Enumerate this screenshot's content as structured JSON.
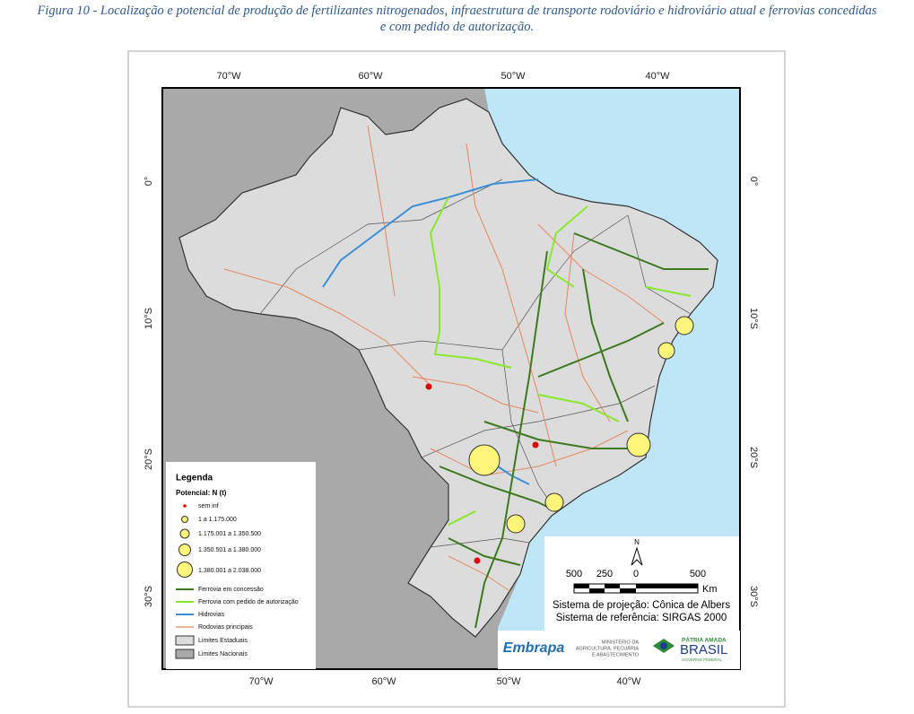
{
  "caption": [
    "Figura 10 - Localização e potencial de produção de fertilizantes nitrogenados, infraestrutura de transporte rodoviário e hidroviário atual e ferrovias concedidas",
    "e com pedido de autorização."
  ],
  "map": {
    "graticule": {
      "top": [
        "70°W",
        "60°W",
        "50°W",
        "40°W"
      ],
      "bottom": [
        "70°W",
        "60°W",
        "50°W",
        "40°W"
      ],
      "left": [
        "0°",
        "10°S",
        "20°S",
        "30°S"
      ],
      "right": [
        "0°",
        "10°S",
        "20°S",
        "30°S"
      ]
    },
    "legend": {
      "title": "Legenda",
      "subtitle": "Potencial: N (t)",
      "classes": [
        "sem inf",
        "1 a 1.175.000",
        "1.175.001 a 1.350.500",
        "1.350.501 a 1.380.000",
        "1.380.001 a 2.038.000"
      ],
      "lines": [
        "Ferrovia em concessão",
        "Ferrovia com pedido de autorização",
        "Hidrovias",
        "Rodovias principais"
      ],
      "areas": [
        "Limites Estaduais",
        "Limites Nacionais"
      ]
    },
    "scale": {
      "north": "N",
      "labels": [
        "500",
        "250",
        "0",
        "500"
      ],
      "unit": "Km"
    },
    "projection": "Sistema de projeção: Cônica de Albers",
    "reference": "Sistema de referência: SIRGAS 2000",
    "logos": {
      "embrapa": "Embrapa",
      "ministry": [
        "MINISTÉRIO DA",
        "AGRICULTURA, PECUÁRIA",
        "E ABASTECIMENTO"
      ],
      "government": [
        "PÁTRIA AMADA",
        "BRASIL",
        "GOVERNO FEDERAL"
      ]
    }
  }
}
